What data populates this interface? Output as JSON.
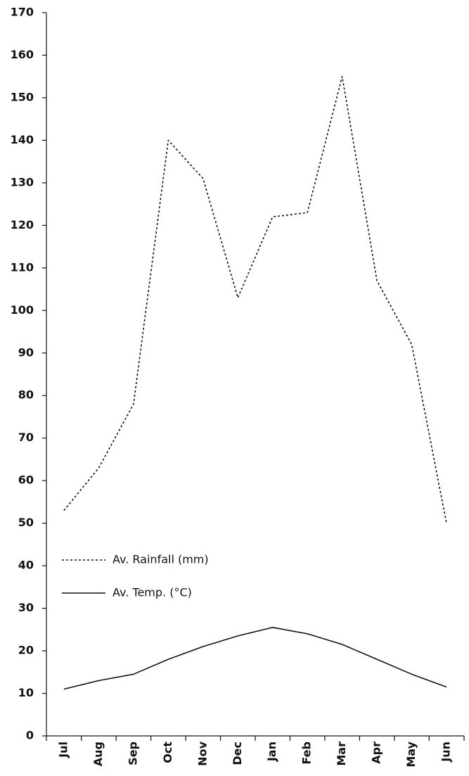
{
  "chart_data": {
    "type": "line",
    "title": "",
    "xlabel": "",
    "ylabel": "",
    "categories": [
      "Jul",
      "Aug",
      "Sep",
      "Oct",
      "Nov",
      "Dec",
      "Jan",
      "Feb",
      "Mar",
      "Apr",
      "May",
      "Jun"
    ],
    "ylim": [
      0,
      170
    ],
    "yticks": [
      0,
      10,
      20,
      30,
      40,
      50,
      60,
      70,
      80,
      90,
      100,
      110,
      120,
      130,
      140,
      150,
      160,
      170
    ],
    "grid": false,
    "legend_position": "left",
    "series": [
      {
        "name": "Av. Rainfall (mm)",
        "style": "dashed",
        "color": "#111111",
        "values": [
          53,
          63,
          78,
          140,
          131,
          103,
          122,
          123,
          155,
          107,
          92,
          50
        ]
      },
      {
        "name": "Av. Temp. (°C)",
        "style": "solid",
        "color": "#111111",
        "values": [
          11,
          13,
          14.5,
          18,
          21,
          23.5,
          25.5,
          24,
          21.5,
          18,
          14.5,
          11.5
        ]
      }
    ]
  }
}
